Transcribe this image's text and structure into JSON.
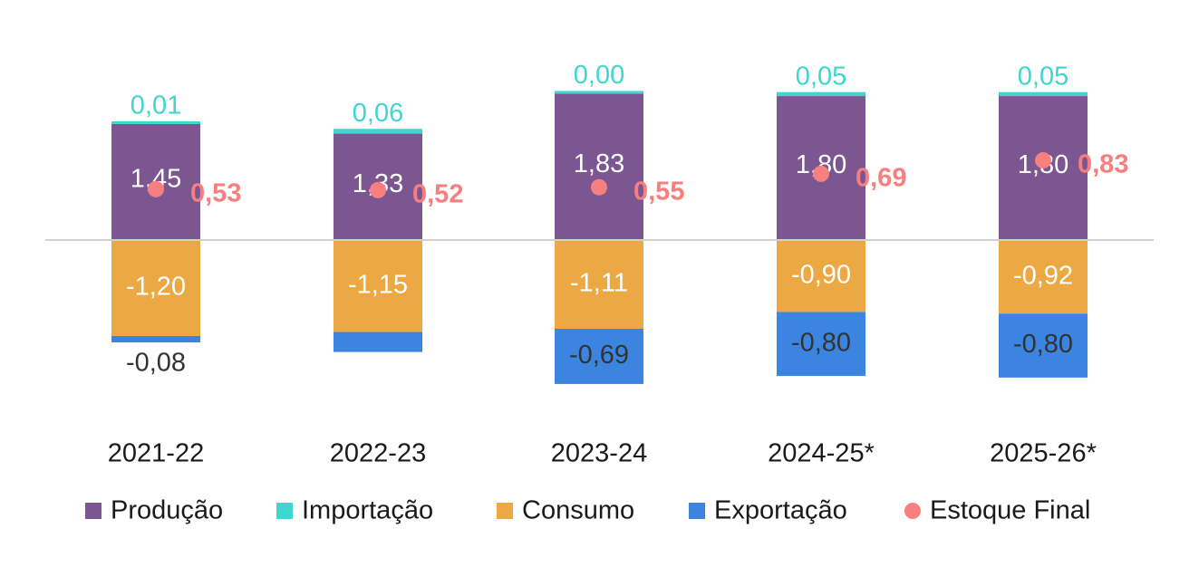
{
  "chart_data": {
    "type": "bar",
    "stacked": true,
    "categories": [
      "2021-22",
      "2022-23",
      "2023-24",
      "2024-25*",
      "2025-26*"
    ],
    "series": [
      {
        "name": "Produção",
        "values": [
          1.45,
          1.33,
          1.83,
          1.8,
          1.8
        ],
        "labels": [
          "1,45",
          "1,33",
          "1,83",
          "1,80",
          "1,80"
        ],
        "color": "#7b5690",
        "label_color": "#ffffff"
      },
      {
        "name": "Importação",
        "values": [
          0.01,
          0.06,
          0.0,
          0.05,
          0.05
        ],
        "labels": [
          "0,01",
          "0,06",
          "0,00",
          "0,05",
          "0,05"
        ],
        "color": "#3fd6d0",
        "label_color": "#3fd6d0"
      },
      {
        "name": "Consumo",
        "values": [
          -1.2,
          -1.15,
          -1.11,
          -0.9,
          -0.92
        ],
        "labels": [
          "-1,20",
          "-1,15",
          "-1,11",
          "-0,90",
          "-0,92"
        ],
        "color": "#eba843",
        "label_color": "#ffffff"
      },
      {
        "name": "Exportação",
        "values": [
          -0.08,
          -0.25,
          -0.69,
          -0.8,
          -0.8
        ],
        "labels": [
          "-0,08",
          "",
          "-0,69",
          "-0,80",
          "-0,80"
        ],
        "color": "#3b85e0",
        "label_color": "#333333"
      },
      {
        "name": "Estoque Final",
        "type": "scatter",
        "values": [
          0.53,
          0.52,
          0.55,
          0.69,
          0.83
        ],
        "labels": [
          "0,53",
          "0,52",
          "0,55",
          "0,69",
          "0,83"
        ],
        "color": "#f77f7f"
      }
    ],
    "ylim": [
      -1.9,
      2.4
    ],
    "grid": false,
    "legend": "bottom"
  }
}
